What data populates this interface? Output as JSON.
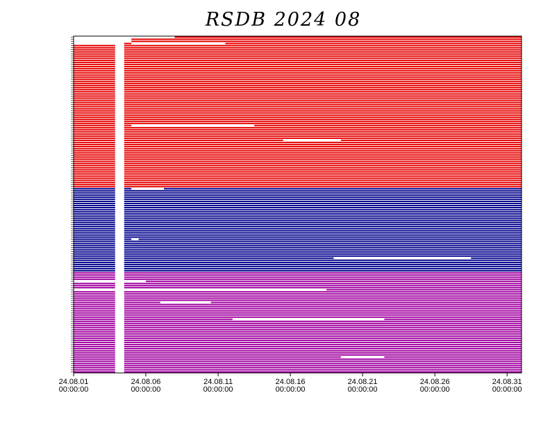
{
  "chart_data": {
    "type": "timeline",
    "title": "RSDB  2024  08",
    "xlabel": "",
    "ylabel": "",
    "xlim": [
      "2024-08-01 00:00:00",
      "2024-09-01 00:00:00"
    ],
    "x_ticks": [
      {
        "date": "2024-08-01",
        "line1": "24.08.01",
        "line2": "00:00:00"
      },
      {
        "date": "2024-08-06",
        "line1": "24.08.06",
        "line2": "00:00:00"
      },
      {
        "date": "2024-08-11",
        "line1": "24.08.11",
        "line2": "00:00:00"
      },
      {
        "date": "2024-08-16",
        "line1": "24.08.16",
        "line2": "00:00:00"
      },
      {
        "date": "2024-08-21",
        "line1": "24.08.21",
        "line2": "00:00:00"
      },
      {
        "date": "2024-08-26",
        "line1": "24.08.26",
        "line2": "00:00:00"
      },
      {
        "date": "2024-08-31",
        "line1": "24.08.31",
        "line2": "00:00:00"
      }
    ],
    "grid": false,
    "legend": "none",
    "groups": [
      {
        "color": "#e60000",
        "rows": 72
      },
      {
        "color": "#00008c",
        "rows": 40
      },
      {
        "color": "#a000a0",
        "rows": 48
      }
    ],
    "common_gap": {
      "start": "2024-08-03 21:00:00",
      "end": "2024-08-04 12:00:00"
    },
    "irregular_rows": [
      {
        "group": 0,
        "row": 0,
        "start": "2024-08-08 00:00:00"
      },
      {
        "group": 0,
        "row": 1,
        "start": "2024-08-05 00:00:00"
      },
      {
        "group": 0,
        "row": 2,
        "start": "2024-08-05 00:00:00"
      },
      {
        "group": 0,
        "row": 3,
        "start": "2024-08-04 12:00:00",
        "gaps": [
          [
            "2024-08-05 00:00:00",
            "2024-08-11 12:00:00"
          ]
        ]
      },
      {
        "group": 0,
        "row": 42,
        "gaps": [
          [
            "2024-08-05 00:00:00",
            "2024-08-13 12:00:00"
          ]
        ]
      },
      {
        "group": 0,
        "row": 49,
        "gaps": [
          [
            "2024-08-15 12:00:00",
            "2024-08-19 12:00:00"
          ]
        ]
      },
      {
        "group": 1,
        "row": 0,
        "gaps": [
          [
            "2024-08-05 00:00:00",
            "2024-08-07 06:00:00"
          ]
        ]
      },
      {
        "group": 1,
        "row": 24,
        "gaps": [
          [
            "2024-08-05 00:00:00",
            "2024-08-05 12:00:00"
          ]
        ]
      },
      {
        "group": 1,
        "row": 33,
        "gaps": [
          [
            "2024-08-19 00:00:00",
            "2024-08-28 12:00:00"
          ]
        ]
      },
      {
        "group": 2,
        "row": 4,
        "gaps": [
          [
            "2024-08-01 00:00:00",
            "2024-08-06 00:00:00"
          ]
        ]
      },
      {
        "group": 2,
        "row": 8,
        "start": "2024-08-18 12:00:00"
      },
      {
        "group": 2,
        "row": 14,
        "gaps": [
          [
            "2024-08-07 00:00:00",
            "2024-08-10 12:00:00"
          ]
        ]
      },
      {
        "group": 2,
        "row": 22,
        "gaps": [
          [
            "2024-08-12 00:00:00",
            "2024-08-22 12:00:00"
          ]
        ]
      },
      {
        "group": 2,
        "row": 40,
        "gaps": [
          [
            "2024-08-19 12:00:00",
            "2024-08-22 12:00:00"
          ]
        ]
      }
    ]
  }
}
